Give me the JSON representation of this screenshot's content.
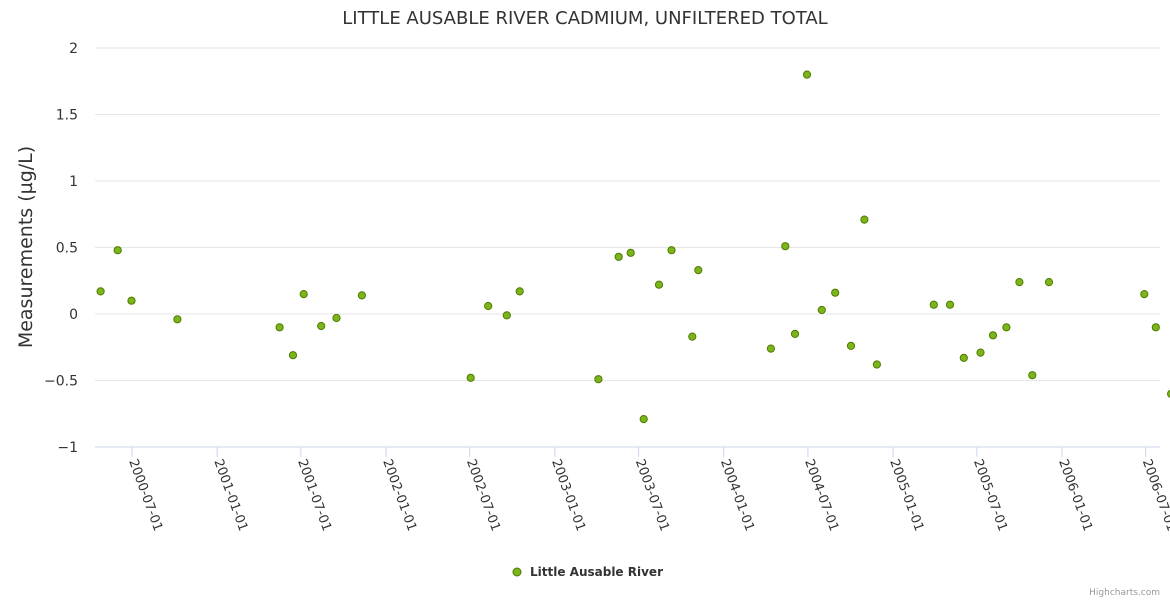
{
  "chart_data": {
    "type": "scatter",
    "title": "LITTLE AUSABLE RIVER CADMIUM, UNFILTERED TOTAL",
    "xlabel": "",
    "ylabel": "Measurements (µg/L)",
    "ylim": [
      -1,
      2
    ],
    "yticks": [
      "2",
      "1.5",
      "1",
      "0.5",
      "0",
      "−0.5",
      "−1"
    ],
    "ytick_values": [
      2,
      1.5,
      1,
      0.5,
      0,
      -0.5,
      -1
    ],
    "xlim": [
      "2000-04-12",
      "2006-08-01"
    ],
    "xticks": [
      "2000-07-01",
      "2001-01-01",
      "2001-07-01",
      "2002-01-01",
      "2002-07-01",
      "2003-01-01",
      "2003-07-01",
      "2004-01-01",
      "2004-07-01",
      "2005-01-01",
      "2005-07-01",
      "2006-01-01",
      "2006-07-01"
    ],
    "grid": true,
    "legend_position": "bottom-center",
    "series": [
      {
        "name": "Little Ausable River",
        "color": "#7cb51b",
        "stroke": "#4f7a00",
        "points": [
          {
            "x": "2000-04-24",
            "y": 0.17
          },
          {
            "x": "2000-05-31",
            "y": 0.48
          },
          {
            "x": "2000-06-30",
            "y": 0.1
          },
          {
            "x": "2000-10-07",
            "y": -0.04
          },
          {
            "x": "2001-05-16",
            "y": -0.1
          },
          {
            "x": "2001-06-14",
            "y": -0.31
          },
          {
            "x": "2001-07-07",
            "y": 0.15
          },
          {
            "x": "2001-08-14",
            "y": -0.09
          },
          {
            "x": "2001-09-16",
            "y": -0.03
          },
          {
            "x": "2001-11-10",
            "y": 0.14
          },
          {
            "x": "2002-07-03",
            "y": -0.48
          },
          {
            "x": "2002-08-10",
            "y": 0.06
          },
          {
            "x": "2002-09-19",
            "y": -0.01
          },
          {
            "x": "2002-10-17",
            "y": 0.17
          },
          {
            "x": "2003-04-05",
            "y": -0.49
          },
          {
            "x": "2003-05-19",
            "y": 0.43
          },
          {
            "x": "2003-06-14",
            "y": 0.46
          },
          {
            "x": "2003-07-12",
            "y": -0.79
          },
          {
            "x": "2003-08-14",
            "y": 0.22
          },
          {
            "x": "2003-09-10",
            "y": 0.48
          },
          {
            "x": "2003-10-25",
            "y": -0.17
          },
          {
            "x": "2003-11-07",
            "y": 0.33
          },
          {
            "x": "2004-04-12",
            "y": -0.26
          },
          {
            "x": "2004-05-13",
            "y": 0.51
          },
          {
            "x": "2004-06-03",
            "y": -0.15
          },
          {
            "x": "2004-06-29",
            "y": 1.8
          },
          {
            "x": "2004-07-31",
            "y": 0.03
          },
          {
            "x": "2004-08-29",
            "y": 0.16
          },
          {
            "x": "2004-10-02",
            "y": -0.24
          },
          {
            "x": "2004-10-31",
            "y": 0.71
          },
          {
            "x": "2004-11-27",
            "y": -0.38
          },
          {
            "x": "2005-03-30",
            "y": 0.07
          },
          {
            "x": "2005-05-04",
            "y": 0.07
          },
          {
            "x": "2005-06-03",
            "y": -0.33
          },
          {
            "x": "2005-07-09",
            "y": -0.29
          },
          {
            "x": "2005-08-05",
            "y": -0.16
          },
          {
            "x": "2005-09-03",
            "y": -0.1
          },
          {
            "x": "2005-10-01",
            "y": 0.24
          },
          {
            "x": "2005-10-29",
            "y": -0.46
          },
          {
            "x": "2005-12-04",
            "y": 0.24
          },
          {
            "x": "2006-06-28",
            "y": 0.15
          },
          {
            "x": "2006-07-23",
            "y": -0.1
          },
          {
            "x": "2006-08-25",
            "y": -0.6
          }
        ]
      }
    ]
  },
  "credits": "Highcharts.com"
}
